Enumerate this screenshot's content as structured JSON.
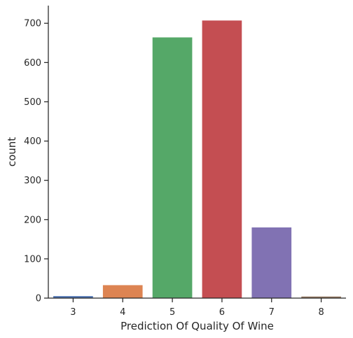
{
  "chart_data": {
    "type": "bar",
    "xlabel": "Prediction Of Quality Of Wine",
    "ylabel": "count",
    "categories": [
      "3",
      "4",
      "5",
      "6",
      "7",
      "8"
    ],
    "values": [
      5,
      33,
      664,
      707,
      180,
      4
    ],
    "colors": [
      "#4c72b0",
      "#dd8452",
      "#55a868",
      "#c44e52",
      "#8172b3",
      "#937860"
    ],
    "ylim": [
      0,
      745
    ],
    "yticks": [
      0,
      100,
      200,
      300,
      400,
      500,
      600,
      700
    ],
    "grid": false
  }
}
